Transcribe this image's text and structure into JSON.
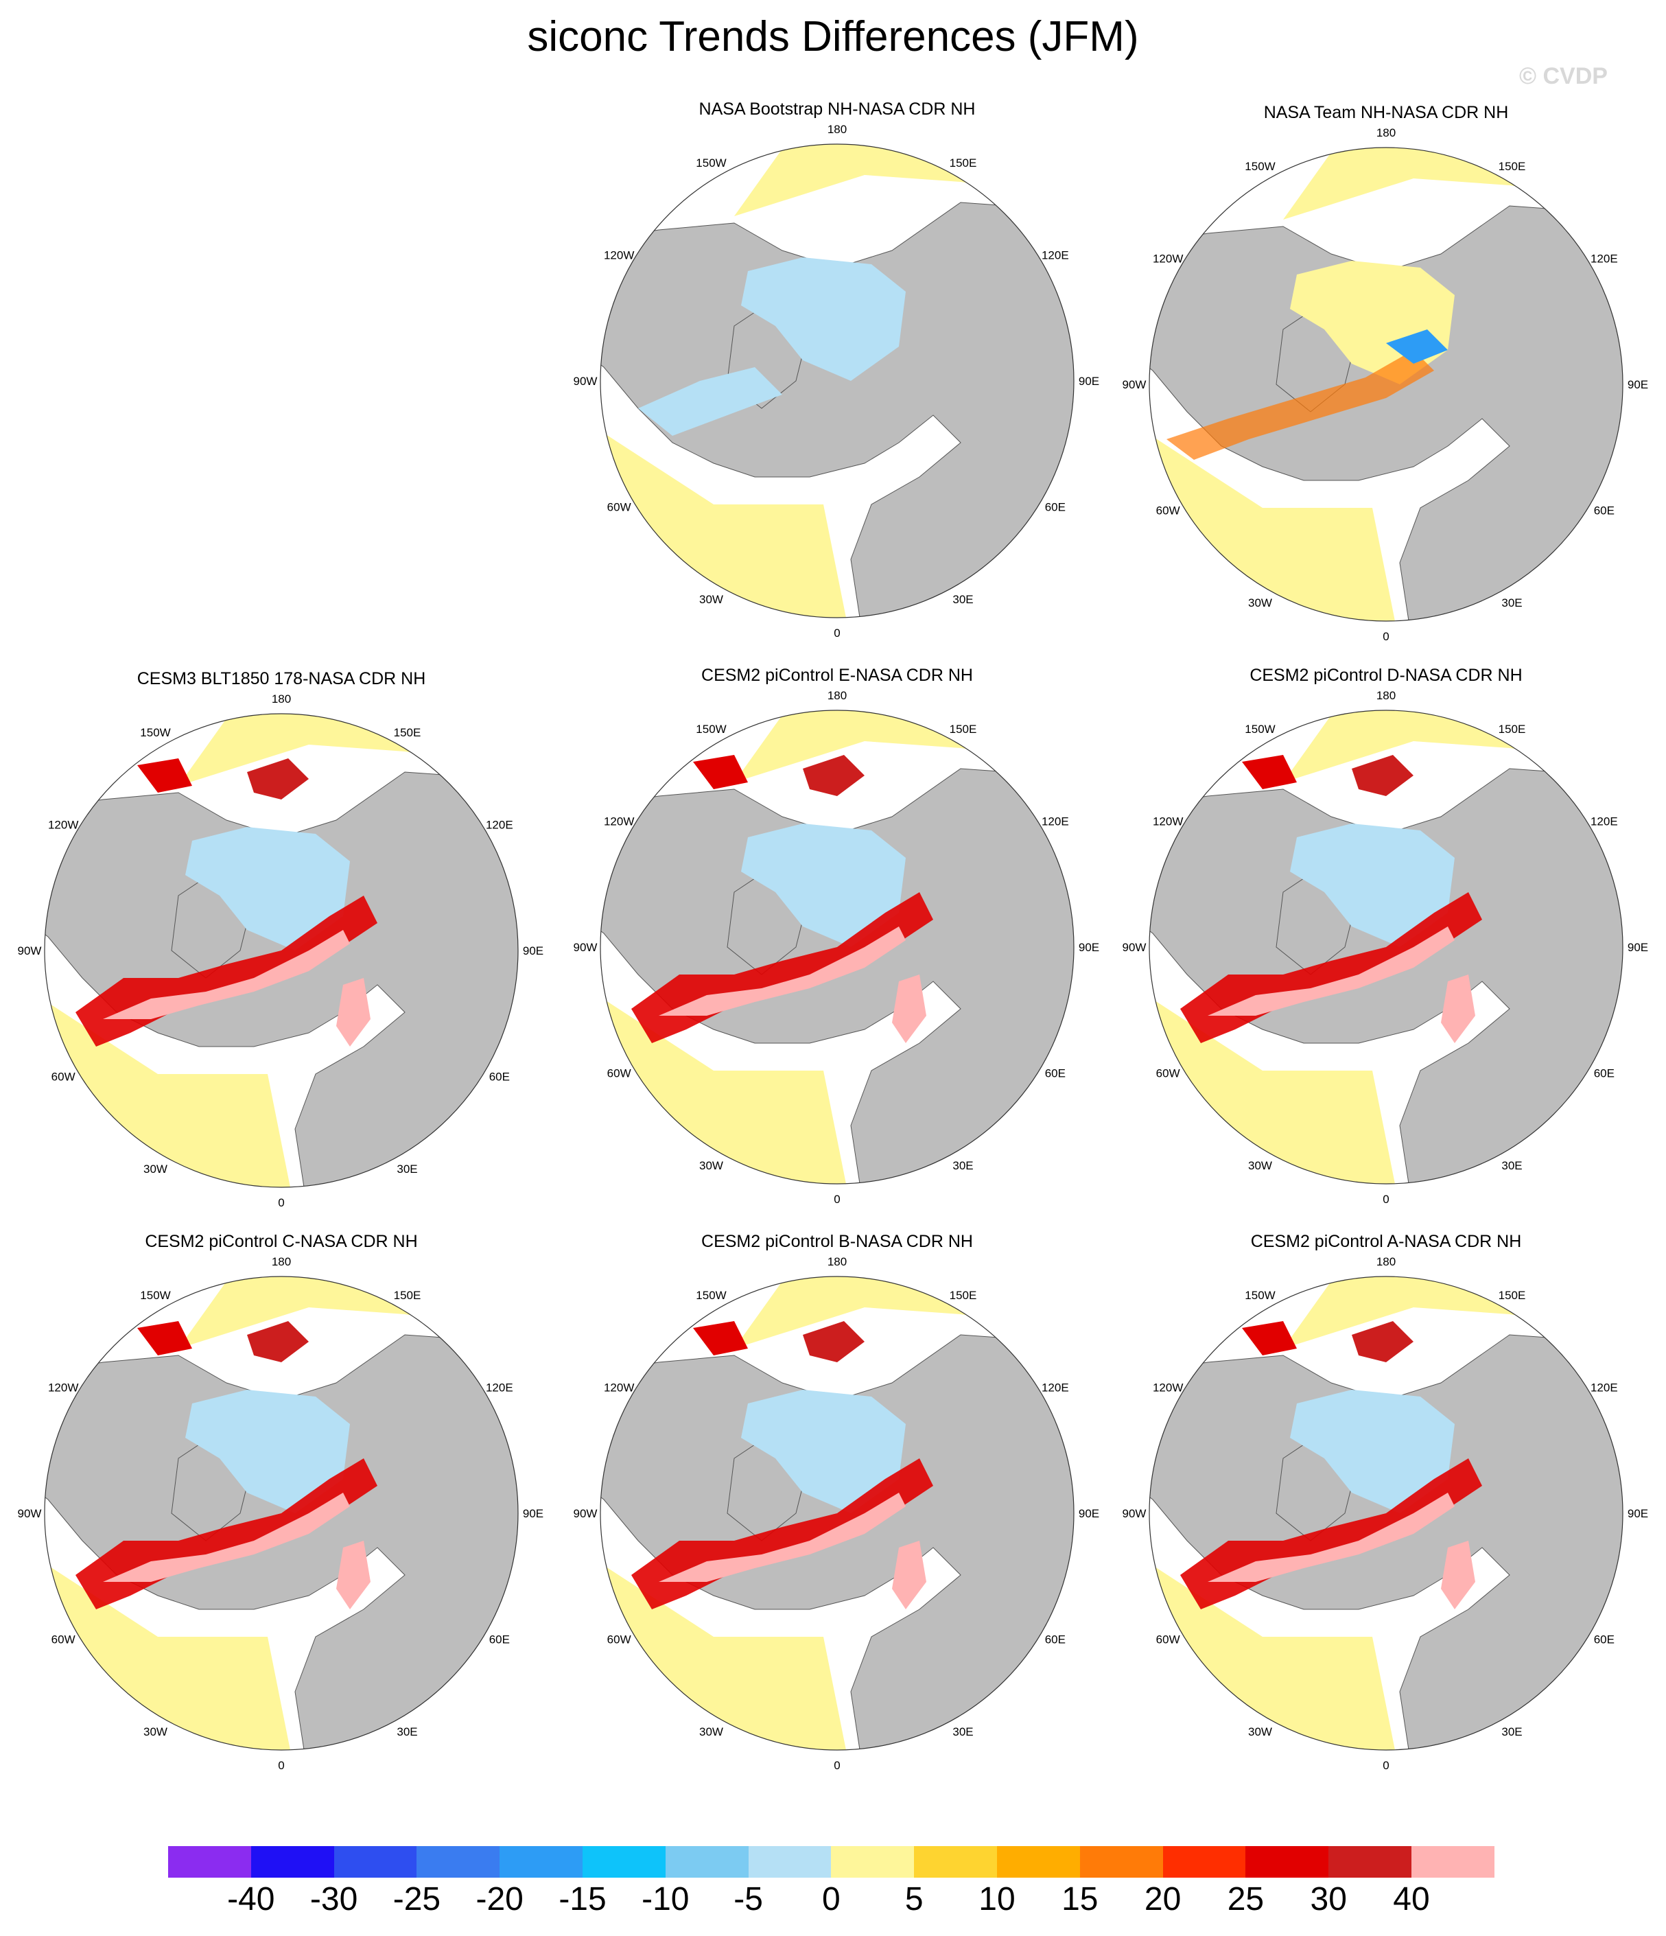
{
  "title": "siconc Trends Differences (JFM)",
  "watermark": "© CVDP",
  "panels": [
    {
      "title": "NASA Bootstrap NH-NASA CDR NH"
    },
    {
      "title": "NASA Team NH-NASA CDR NH"
    },
    {
      "title": "CESM3 BLT1850 178-NASA CDR NH"
    },
    {
      "title": "CESM2 piControl E-NASA CDR NH"
    },
    {
      "title": "CESM2 piControl D-NASA CDR NH"
    },
    {
      "title": "CESM2 piControl C-NASA CDR NH"
    },
    {
      "title": "CESM2 piControl B-NASA CDR NH"
    },
    {
      "title": "CESM2 piControl A-NASA CDR NH"
    }
  ],
  "lon_labels": [
    "180",
    "150E",
    "120E",
    "90E",
    "60E",
    "30E",
    "0",
    "30W",
    "60W",
    "90W",
    "120W",
    "150W"
  ],
  "colorbar": {
    "ticks": [
      "-40",
      "-30",
      "-25",
      "-20",
      "-15",
      "-10",
      "-5",
      "0",
      "5",
      "10",
      "15",
      "20",
      "25",
      "30",
      "40"
    ],
    "colors": [
      "#8b2cf0",
      "#1f10f5",
      "#2e4ef0",
      "#3a7cf0",
      "#2d9cf5",
      "#0ec3fa",
      "#7ccbf2",
      "#b5e0f5",
      "#fef69a",
      "#fed430",
      "#ffad00",
      "#ff7b08",
      "#ff2e00",
      "#e10000",
      "#cc1e1e",
      "#ffb3b3"
    ]
  }
}
